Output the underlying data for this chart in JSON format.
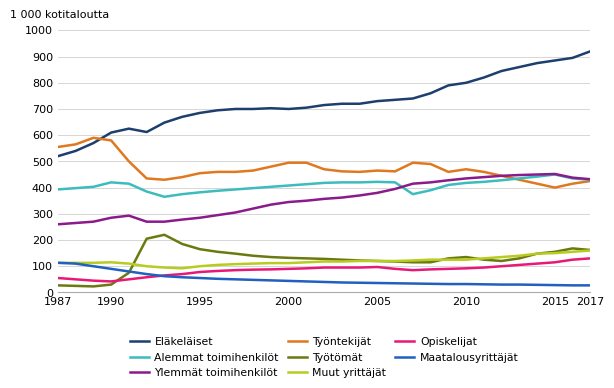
{
  "years": [
    1987,
    1988,
    1989,
    1990,
    1991,
    1992,
    1993,
    1994,
    1995,
    1996,
    1997,
    1998,
    1999,
    2000,
    2001,
    2002,
    2003,
    2004,
    2005,
    2006,
    2007,
    2008,
    2009,
    2010,
    2011,
    2012,
    2013,
    2014,
    2015,
    2016,
    2017
  ],
  "series": {
    "Eläkeläiset": [
      520,
      540,
      570,
      610,
      625,
      612,
      648,
      670,
      685,
      695,
      700,
      700,
      703,
      700,
      705,
      715,
      720,
      720,
      730,
      735,
      740,
      760,
      790,
      800,
      820,
      845,
      860,
      875,
      885,
      895,
      920
    ],
    "Työntekijät": [
      555,
      565,
      590,
      580,
      500,
      435,
      430,
      440,
      455,
      460,
      460,
      465,
      480,
      495,
      495,
      470,
      462,
      460,
      465,
      462,
      495,
      490,
      460,
      470,
      460,
      445,
      430,
      415,
      400,
      415,
      425
    ],
    "Alemmat toimihenkilöt": [
      393,
      398,
      403,
      420,
      415,
      385,
      365,
      375,
      382,
      388,
      393,
      398,
      403,
      408,
      413,
      418,
      420,
      420,
      422,
      420,
      375,
      390,
      410,
      418,
      422,
      428,
      435,
      442,
      450,
      435,
      430
    ],
    "Ylemmät toimihenkilöt": [
      260,
      265,
      270,
      285,
      293,
      270,
      270,
      278,
      285,
      295,
      305,
      320,
      335,
      345,
      350,
      357,
      362,
      370,
      380,
      395,
      415,
      420,
      428,
      435,
      440,
      445,
      448,
      450,
      452,
      438,
      432
    ],
    "Työtömät": [
      27,
      25,
      23,
      30,
      75,
      205,
      220,
      185,
      165,
      155,
      148,
      140,
      135,
      132,
      130,
      128,
      125,
      122,
      120,
      118,
      115,
      115,
      130,
      135,
      125,
      120,
      130,
      148,
      155,
      168,
      162
    ],
    "Muut yrittäjät": [
      113,
      113,
      113,
      115,
      110,
      100,
      95,
      92,
      100,
      105,
      108,
      110,
      112,
      112,
      115,
      118,
      118,
      120,
      120,
      120,
      122,
      125,
      125,
      125,
      130,
      135,
      140,
      148,
      150,
      155,
      160
    ],
    "Opiskelijat": [
      55,
      50,
      45,
      42,
      50,
      58,
      65,
      70,
      78,
      82,
      85,
      87,
      88,
      90,
      92,
      95,
      95,
      95,
      97,
      90,
      85,
      88,
      90,
      92,
      95,
      100,
      105,
      110,
      115,
      125,
      130
    ],
    "Maatalousyrittäjät": [
      113,
      110,
      100,
      90,
      80,
      70,
      62,
      58,
      55,
      52,
      50,
      48,
      46,
      44,
      42,
      40,
      38,
      37,
      36,
      35,
      34,
      33,
      32,
      32,
      31,
      30,
      30,
      29,
      28,
      27,
      27
    ]
  },
  "colors": {
    "Eläkeläiset": "#1c3f6e",
    "Työntekijät": "#e07820",
    "Alemmat toimihenkilöt": "#3cbcbc",
    "Ylemmät toimihenkilöt": "#8b1a8b",
    "Työtömät": "#6b7a10",
    "Muut yrittäjät": "#b8cc20",
    "Opiskelijat": "#e81878",
    "Maatalousyrittäjät": "#2060c0"
  },
  "ylabel": "1 000 kotitaloutta",
  "ylim": [
    0,
    1000
  ],
  "yticks": [
    0,
    100,
    200,
    300,
    400,
    500,
    600,
    700,
    800,
    900,
    1000
  ],
  "xticks": [
    1987,
    1990,
    1995,
    2000,
    2005,
    2010,
    2015,
    2017
  ],
  "legend_order": [
    [
      "Eläkeläiset",
      "Alemmat toimihenkilöt",
      "Ylemmät toimihenkilöt"
    ],
    [
      "Työntekijät",
      "Työtömät",
      "Muut yrittäjät"
    ],
    [
      "Opiskelijat",
      "Maatalousyrittäjät",
      null
    ]
  ],
  "background_color": "#ffffff",
  "grid_color": "#d0d0d0"
}
